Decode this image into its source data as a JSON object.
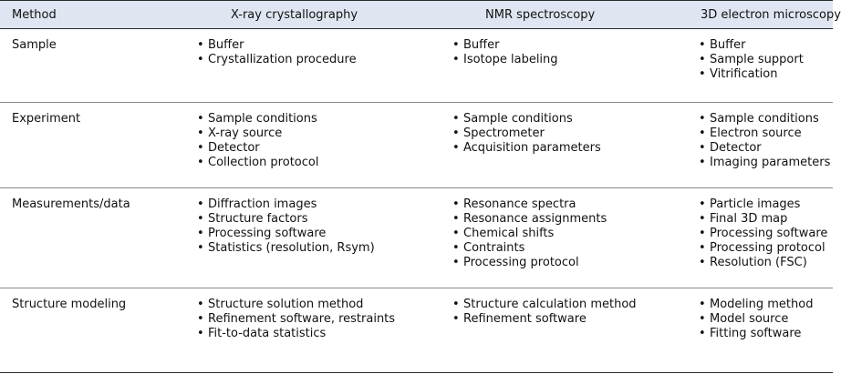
{
  "header": {
    "method": "Method",
    "xray": "X-ray crystallography",
    "nmr": "NMR spectroscopy",
    "em": "3D electron microscopy"
  },
  "bullet_glyph": "•",
  "rows": [
    {
      "label": "Sample",
      "xray": [
        "Buffer",
        "Crystallization procedure"
      ],
      "nmr": [
        "Buffer",
        "Isotope labeling"
      ],
      "em": [
        "Buffer",
        "Sample support",
        "Vitrification"
      ]
    },
    {
      "label": "Experiment",
      "xray": [
        "Sample conditions",
        "X-ray source",
        "Detector",
        "Collection protocol"
      ],
      "nmr": [
        "Sample conditions",
        "Spectrometer",
        "Acquisition parameters"
      ],
      "em": [
        "Sample conditions",
        "Electron source",
        "Detector",
        "Imaging parameters"
      ]
    },
    {
      "label": "Measurements/data",
      "xray": [
        "Diffraction images",
        "Structure factors",
        "Processing software",
        "Statistics (resolution, Rsym)"
      ],
      "nmr": [
        "Resonance spectra",
        "Resonance assignments",
        "Chemical shifts",
        "Contraints",
        "Processing protocol"
      ],
      "em": [
        "Particle images",
        "Final 3D map",
        "Processing software",
        "Processing protocol",
        "Resolution (FSC)"
      ]
    },
    {
      "label": "Structure modeling",
      "xray": [
        "Structure solution method",
        "Refinement software, restraints",
        "Fit-to-data statistics"
      ],
      "nmr": [
        "Structure calculation method",
        "Refinement software"
      ],
      "em": [
        "Modeling method",
        "Model source",
        "Fitting software"
      ]
    }
  ]
}
